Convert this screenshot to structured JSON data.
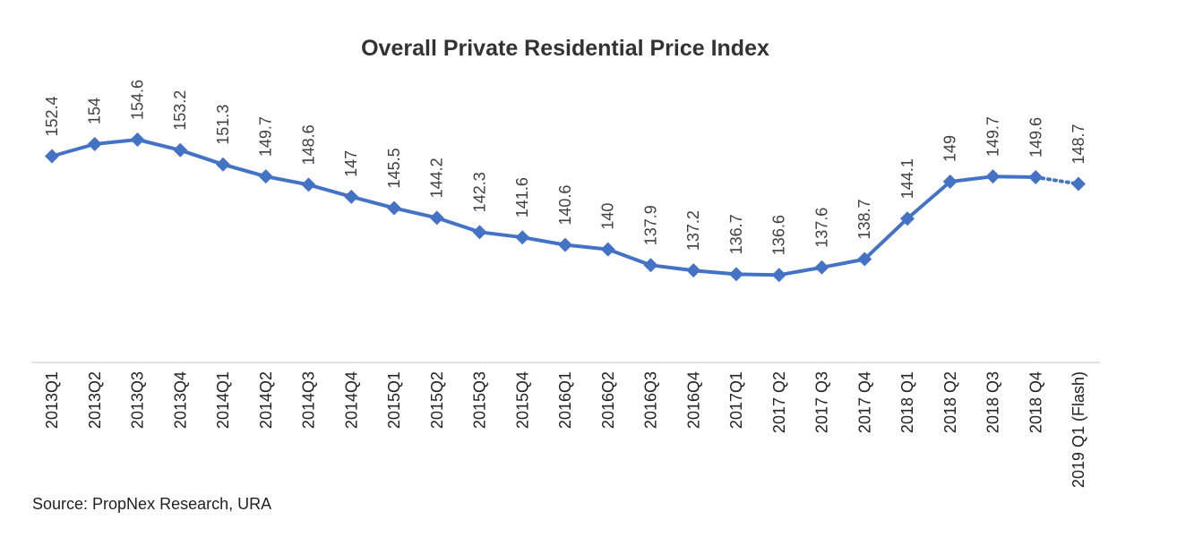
{
  "chart_data": {
    "type": "line",
    "title": "Overall Private Residential Price Index",
    "source": "Source: PropNex Research, URA",
    "categories": [
      "2013Q1",
      "2013Q2",
      "2013Q3",
      "2013Q4",
      "2014Q1",
      "2014Q2",
      "2014Q3",
      "2014Q4",
      "2015Q1",
      "2015Q2",
      "2015Q3",
      "2015Q4",
      "2016Q1",
      "2016Q2",
      "2016Q3",
      "2016Q4",
      "2017Q1",
      "2017 Q2",
      "2017 Q3",
      "2017 Q4",
      "2018 Q1",
      "2018 Q2",
      "2018 Q3",
      "2018 Q4",
      "2019 Q1 (Flash)"
    ],
    "series": [
      {
        "values": [
          152.4,
          154,
          154.6,
          153.2,
          151.3,
          149.7,
          148.6,
          147,
          145.5,
          144.2,
          142.3,
          141.6,
          140.6,
          140,
          137.9,
          137.2,
          136.7,
          136.6,
          137.6,
          138.7,
          144.1,
          149,
          149.7,
          149.6,
          148.7
        ],
        "labels": [
          "152.4",
          "154",
          "154.6",
          "153.2",
          "151.3",
          "149.7",
          "148.6",
          "147",
          "145.5",
          "144.2",
          "142.3",
          "141.6",
          "140.6",
          "140",
          "137.9",
          "137.2",
          "136.7",
          "136.6",
          "137.6",
          "138.7",
          "144.1",
          "149",
          "149.7",
          "149.6",
          "148.7"
        ],
        "color": "#4472C4",
        "last_segment_style": "dotted"
      }
    ],
    "grid": false,
    "legend": "none"
  }
}
